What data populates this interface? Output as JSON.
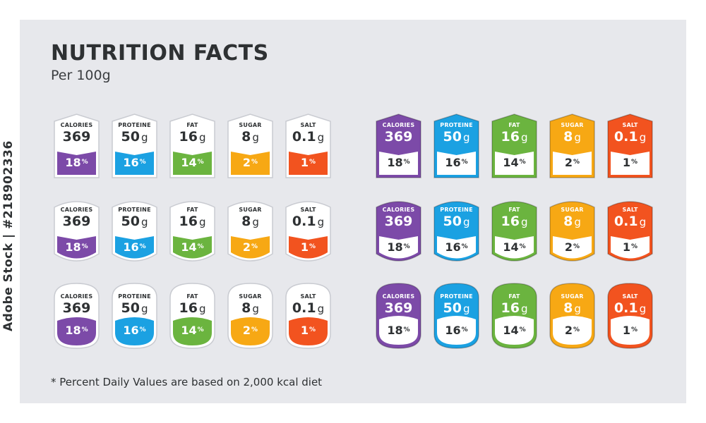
{
  "title": "NUTRITION FACTS",
  "subtitle": "Per 100g",
  "footnote": "* Percent Daily Values are based on 2,000 kcal diet",
  "stock_id": "Adobe Stock | #218902336",
  "percent_sign": "%",
  "nutrients": [
    {
      "name": "CALORIES",
      "value": "369",
      "unit": "",
      "percent": "18",
      "color": "#7c4aa8"
    },
    {
      "name": "PROTEINE",
      "value": "50",
      "unit": "g",
      "percent": "16",
      "color": "#1ba1e2"
    },
    {
      "name": "FAT",
      "value": "16",
      "unit": "g",
      "percent": "14",
      "color": "#6bb43f"
    },
    {
      "name": "SUGAR",
      "value": "8",
      "unit": "g",
      "percent": "2",
      "color": "#f7a814"
    },
    {
      "name": "SALT",
      "value": "0.1",
      "unit": "g",
      "percent": "1",
      "color": "#f2531f"
    }
  ],
  "label_sets": [
    {
      "style": "light",
      "shape": "pentagon"
    },
    {
      "style": "light",
      "shape": "shield"
    },
    {
      "style": "light",
      "shape": "rounded"
    },
    {
      "style": "dark",
      "shape": "pentagon"
    },
    {
      "style": "dark",
      "shape": "shield"
    },
    {
      "style": "dark",
      "shape": "rounded"
    }
  ]
}
